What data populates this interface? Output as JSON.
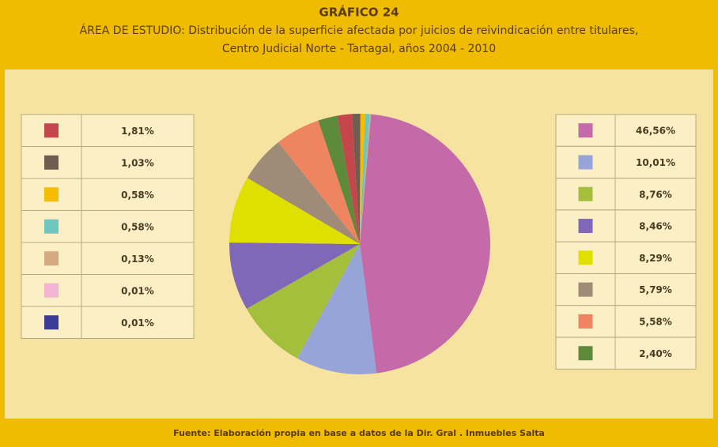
{
  "chart_data": {
    "type": "pie",
    "title": "GRÁFICO 24",
    "subtitle": [
      "ÁREA DE ESTUDIO: Distribución de la superficie afectada por juicios de reivindicación entre titulares,",
      "Centro Judicial Norte - Tartagal, años 2004 - 2010"
    ],
    "source": "Fuente: Elaboración propia en base a datos de la Dir. Gral . Inmuebles Salta",
    "values": [
      46.56,
      10.01,
      8.76,
      8.46,
      8.29,
      5.79,
      5.58,
      2.4,
      1.81,
      1.03,
      0.58,
      0.58,
      0.13,
      0.01,
      0.01
    ],
    "value_labels": [
      "46,56%",
      "10,01%",
      "8,76%",
      "8,46%",
      "8,29%",
      "5,79%",
      "5,58%",
      "2,40%",
      "1,81%",
      "1,03%",
      "0,58%",
      "0,58%",
      "0,13%",
      "0,01%",
      "0,01%"
    ],
    "colors": [
      "#c46aa8",
      "#96a4d8",
      "#a4bf3c",
      "#8068b8",
      "#e0e000",
      "#a08a78",
      "#ee8460",
      "#5e8a3c",
      "#c4464c",
      "#6e5e52",
      "#f6bc00",
      "#6ec6c0",
      "#d6aa80",
      "#f4b4d4",
      "#3c3c98"
    ]
  }
}
